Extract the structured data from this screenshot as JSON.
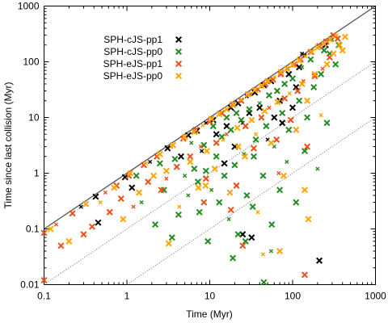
{
  "chart_data": {
    "type": "scatter",
    "title": "",
    "xlabel": "Time (Myr)",
    "ylabel": "Time since last collision (Myr)",
    "x_scale": "log",
    "y_scale": "log",
    "xlim": [
      0.1,
      1000
    ],
    "ylim": [
      0.01,
      1000
    ],
    "x_ticks": [
      "0.1",
      "1",
      "10",
      "100",
      "1000"
    ],
    "y_ticks": [
      "0.01",
      "0.1",
      "1",
      "10",
      "100",
      "1000"
    ],
    "grid": false,
    "legend_position": "top-left",
    "reference_lines": [
      {
        "slope": 1,
        "factor": 1,
        "style": "solid"
      },
      {
        "slope": 1,
        "factor": 0.1,
        "style": "dotted"
      },
      {
        "slope": 1,
        "factor": 0.01,
        "style": "dotted"
      }
    ],
    "series": [
      {
        "name": "SPH-cJS-pp1",
        "color": "#000000",
        "marker": "x",
        "points": [
          [
            0.28,
            0.25
          ],
          [
            0.42,
            0.38
          ],
          [
            0.45,
            0.13
          ],
          [
            0.95,
            0.85
          ],
          [
            1.15,
            0.55
          ],
          [
            1.9,
            1.6
          ],
          [
            3.1,
            2.8
          ],
          [
            5.5,
            4.8
          ],
          [
            6.5,
            5.6
          ],
          [
            7.0,
            5.8
          ],
          [
            9.0,
            8.0
          ],
          [
            11,
            9
          ],
          [
            14,
            12
          ],
          [
            18,
            15
          ],
          [
            22,
            18
          ],
          [
            28,
            24
          ],
          [
            35,
            28
          ],
          [
            45,
            38
          ],
          [
            55,
            45
          ],
          [
            30,
            12
          ],
          [
            25,
            8
          ],
          [
            40,
            15
          ],
          [
            70,
            20
          ],
          [
            90,
            60
          ],
          [
            120,
            80
          ],
          [
            130,
            140
          ],
          [
            110,
            35
          ],
          [
            60,
            10
          ],
          [
            20,
            3
          ],
          [
            15,
            1.5
          ],
          [
            8,
            2.5
          ],
          [
            12,
            5
          ],
          [
            32,
            0.07
          ],
          [
            210,
            0.027
          ],
          [
            25,
            0.08
          ],
          [
            50,
            4
          ],
          [
            75,
            8
          ],
          [
            100,
            15
          ],
          [
            16,
            7
          ],
          [
            4.5,
            2
          ],
          [
            140,
            130
          ],
          [
            250,
            200
          ]
        ]
      },
      {
        "name": "SPH-cJS-pp0",
        "color": "#228b22",
        "marker": "x",
        "points": [
          [
            1.3,
            0.9
          ],
          [
            1.5,
            0.3
          ],
          [
            2.2,
            0.12
          ],
          [
            2.8,
            0.5
          ],
          [
            3.5,
            0.07
          ],
          [
            4.2,
            0.18
          ],
          [
            5.5,
            0.4
          ],
          [
            6.5,
            1.2
          ],
          [
            7.5,
            0.2
          ],
          [
            8.5,
            3.2
          ],
          [
            9.5,
            0.06
          ],
          [
            10.5,
            0.5
          ],
          [
            12,
            2.0
          ],
          [
            13,
            0.3
          ],
          [
            14,
            4.5
          ],
          [
            15,
            0.9
          ],
          [
            17,
            0.15
          ],
          [
            18,
            6
          ],
          [
            20,
            1.4
          ],
          [
            22,
            0.08
          ],
          [
            24,
            9
          ],
          [
            26,
            2.2
          ],
          [
            28,
            0.4
          ],
          [
            30,
            14
          ],
          [
            33,
            0.25
          ],
          [
            36,
            4
          ],
          [
            40,
            18
          ],
          [
            44,
            0.9
          ],
          [
            48,
            7
          ],
          [
            52,
            25
          ],
          [
            56,
            0.12
          ],
          [
            60,
            3
          ],
          [
            65,
            30
          ],
          [
            70,
            0.5
          ],
          [
            75,
            12
          ],
          [
            80,
            40
          ],
          [
            85,
            1.6
          ],
          [
            90,
            6
          ],
          [
            100,
            50
          ],
          [
            110,
            0.3
          ],
          [
            120,
            20
          ],
          [
            130,
            80
          ],
          [
            140,
            2.5
          ],
          [
            150,
            10
          ],
          [
            165,
            110
          ],
          [
            180,
            35
          ],
          [
            200,
            1.2
          ],
          [
            220,
            60
          ],
          [
            240,
            160
          ],
          [
            260,
            8
          ],
          [
            280,
            140
          ],
          [
            300,
            250
          ],
          [
            330,
            90
          ],
          [
            360,
            200
          ],
          [
            3.8,
            1.8
          ],
          [
            2.5,
            1.5
          ],
          [
            6,
            3.5
          ],
          [
            11,
            7
          ],
          [
            16,
            10
          ],
          [
            19,
            0.03
          ],
          [
            45,
            0.011
          ],
          [
            55,
            0.04
          ],
          [
            27,
            0.06
          ],
          [
            9,
            1.1
          ],
          [
            21,
            12
          ],
          [
            34,
            2
          ],
          [
            5,
            0.9
          ],
          [
            7.2,
            0.7
          ]
        ]
      },
      {
        "name": "SPH-eJS-pp1",
        "color": "#ee4e1a",
        "marker": "x",
        "points": [
          [
            0.1,
            0.085
          ],
          [
            0.1,
            0.012
          ],
          [
            0.14,
            0.12
          ],
          [
            0.16,
            0.05
          ],
          [
            0.22,
            0.19
          ],
          [
            0.3,
            0.08
          ],
          [
            0.38,
            0.11
          ],
          [
            0.55,
            0.45
          ],
          [
            0.62,
            0.2
          ],
          [
            0.75,
            0.6
          ],
          [
            0.85,
            0.35
          ],
          [
            1.05,
            0.9
          ],
          [
            1.2,
            0.25
          ],
          [
            1.6,
            1.4
          ],
          [
            1.8,
            0.7
          ],
          [
            2.3,
            2.0
          ],
          [
            2.6,
            0.5
          ],
          [
            3.4,
            3.0
          ],
          [
            4.0,
            1.3
          ],
          [
            4.8,
            4.2
          ],
          [
            5.8,
            2.0
          ],
          [
            6.8,
            6.0
          ],
          [
            7.8,
            3.0
          ],
          [
            9,
            0.8
          ],
          [
            10,
            8.5
          ],
          [
            12,
            3.5
          ],
          [
            14,
            12
          ],
          [
            16,
            5
          ],
          [
            19,
            17
          ],
          [
            21,
            0.6
          ],
          [
            24,
            20
          ],
          [
            27,
            7
          ],
          [
            31,
            26
          ],
          [
            34,
            2.8
          ],
          [
            38,
            32
          ],
          [
            42,
            10
          ],
          [
            47,
            40
          ],
          [
            52,
            15
          ],
          [
            58,
            48
          ],
          [
            64,
            4
          ],
          [
            72,
            60
          ],
          [
            80,
            22
          ],
          [
            88,
            75
          ],
          [
            95,
            9
          ],
          [
            105,
            90
          ],
          [
            115,
            30
          ],
          [
            125,
            110
          ],
          [
            135,
            45
          ],
          [
            150,
            3
          ],
          [
            165,
            150
          ],
          [
            185,
            55
          ],
          [
            210,
            190
          ],
          [
            230,
            75
          ],
          [
            255,
            230
          ],
          [
            280,
            120
          ],
          [
            310,
            300
          ],
          [
            350,
            260
          ],
          [
            68,
            1.0
          ],
          [
            140,
            0.015
          ],
          [
            18,
            0.22
          ],
          [
            8.5,
            0.3
          ],
          [
            25,
            0.05
          ],
          [
            3.0,
            0.8
          ]
        ]
      },
      {
        "name": "SPH-eJS-pp0",
        "color": "#ffa500",
        "marker": "x",
        "points": [
          [
            0.12,
            0.1
          ],
          [
            0.2,
            0.06
          ],
          [
            0.32,
            0.28
          ],
          [
            0.48,
            0.3
          ],
          [
            0.7,
            0.55
          ],
          [
            0.9,
            0.15
          ],
          [
            1.1,
            1.0
          ],
          [
            1.4,
            0.45
          ],
          [
            1.7,
            1.5
          ],
          [
            2.1,
            0.9
          ],
          [
            2.5,
            2.2
          ],
          [
            3.0,
            1.1
          ],
          [
            3.6,
            3.2
          ],
          [
            4.3,
            0.25
          ],
          [
            5.0,
            4.5
          ],
          [
            5.8,
            1.6
          ],
          [
            6.5,
            5.5
          ],
          [
            7.3,
            0.55
          ],
          [
            8.2,
            7.2
          ],
          [
            9.2,
            2.5
          ],
          [
            10.5,
            9.5
          ],
          [
            11.5,
            1.2
          ],
          [
            13,
            11.5
          ],
          [
            14.5,
            4.0
          ],
          [
            16,
            14
          ],
          [
            17.5,
            0.45
          ],
          [
            19.5,
            17
          ],
          [
            21.5,
            6.5
          ],
          [
            24,
            21
          ],
          [
            26.5,
            2.0
          ],
          [
            29,
            26
          ],
          [
            32,
            9
          ],
          [
            35,
            31
          ],
          [
            38,
            0.2
          ],
          [
            42,
            37
          ],
          [
            46,
            13
          ],
          [
            50,
            45
          ],
          [
            55,
            3.5
          ],
          [
            60,
            53
          ],
          [
            66,
            19
          ],
          [
            72,
            65
          ],
          [
            78,
            0.9
          ],
          [
            85,
            75
          ],
          [
            92,
            27
          ],
          [
            100,
            88
          ],
          [
            110,
            6
          ],
          [
            120,
            105
          ],
          [
            130,
            40
          ],
          [
            142,
            125
          ],
          [
            155,
            0.15
          ],
          [
            170,
            150
          ],
          [
            185,
            60
          ],
          [
            200,
            180
          ],
          [
            220,
            11
          ],
          [
            240,
            210
          ],
          [
            260,
            90
          ],
          [
            285,
            250
          ],
          [
            310,
            140
          ],
          [
            340,
            300
          ],
          [
            370,
            200
          ],
          [
            400,
            160
          ],
          [
            430,
            280
          ],
          [
            3.2,
            0.055
          ],
          [
            44,
            0.035
          ],
          [
            70,
            0.04
          ],
          [
            140,
            0.5
          ],
          [
            8.9,
            0.6
          ],
          [
            22,
            3.0
          ],
          [
            36,
            5.0
          ],
          [
            150,
            20
          ]
        ]
      }
    ]
  }
}
